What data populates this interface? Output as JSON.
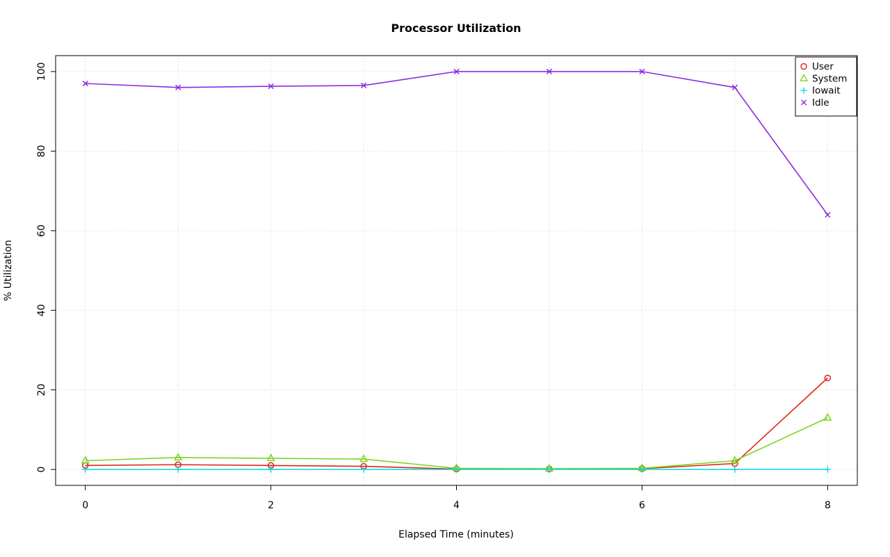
{
  "chart_data": {
    "type": "line",
    "title": "Processor Utilization",
    "xlabel": "Elapsed Time (minutes)",
    "ylabel": "% Utilization",
    "x": [
      0,
      1,
      2,
      3,
      4,
      5,
      6,
      7,
      8
    ],
    "xlim": [
      0,
      8
    ],
    "ylim": [
      0,
      100
    ],
    "x_ticks": [
      0,
      2,
      4,
      6,
      8
    ],
    "y_ticks": [
      0,
      20,
      40,
      60,
      80,
      100
    ],
    "grid_x": [
      0,
      1,
      2,
      3,
      4,
      5,
      6,
      7,
      8
    ],
    "grid": true,
    "grid_style": "dotted",
    "grid_color": "#cfcfcf",
    "background_color": "#ffffff",
    "axis_color": "#000000",
    "legend_position": "top-right",
    "series": [
      {
        "name": "User",
        "color": "#e02417",
        "marker": "circle",
        "values": [
          1,
          1.2,
          1,
          0.8,
          0.1,
          0.1,
          0.2,
          1.5,
          23
        ]
      },
      {
        "name": "System",
        "color": "#7dd41f",
        "marker": "triangle",
        "values": [
          2.2,
          3,
          2.8,
          2.6,
          0.3,
          0.2,
          0.3,
          2.2,
          13
        ]
      },
      {
        "name": "Iowait",
        "color": "#13dbe3",
        "marker": "plus",
        "values": [
          0,
          0,
          0,
          0,
          0,
          0,
          0,
          0,
          0
        ]
      },
      {
        "name": "Idle",
        "color": "#8a2be2",
        "marker": "x",
        "values": [
          97,
          96,
          96.3,
          96.5,
          100,
          100,
          100,
          96,
          64
        ]
      }
    ]
  }
}
